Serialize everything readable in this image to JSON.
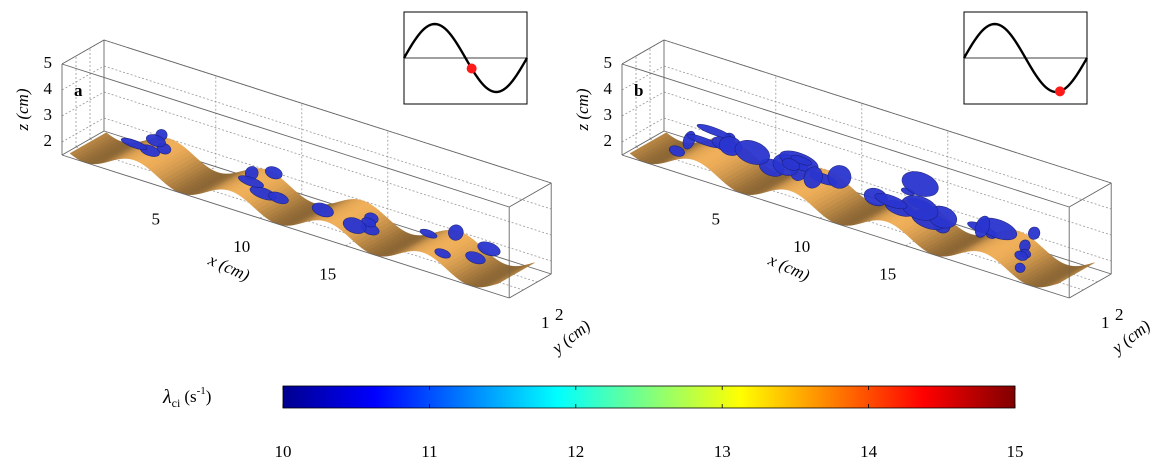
{
  "chart_data": [
    {
      "type": "surface3d",
      "panel_label": "a",
      "xlabel": "x (cm)",
      "ylabel": "y (cm)",
      "zlabel": "z (cm)",
      "xlim": [
        -1.5,
        24.5
      ],
      "ylim": [
        0,
        3
      ],
      "zlim": [
        1.5,
        5
      ],
      "xticks": [
        5,
        10,
        15
      ],
      "yticks": [
        1,
        2
      ],
      "zticks": [
        2,
        3,
        4,
        5
      ],
      "grid": true,
      "surface_color": "#c8924a",
      "vortex_color": "#2a35d0",
      "inset_phase": 0.55
    },
    {
      "type": "surface3d",
      "panel_label": "b",
      "xlabel": "x (cm)",
      "ylabel": "y (cm)",
      "zlabel": "z (cm)",
      "xlim": [
        -1.5,
        24.5
      ],
      "ylim": [
        0,
        3
      ],
      "zlim": [
        1.5,
        5
      ],
      "xticks": [
        5,
        10,
        15
      ],
      "yticks": [
        1,
        2
      ],
      "zticks": [
        2,
        3,
        4,
        5
      ],
      "grid": true,
      "surface_color": "#c8924a",
      "vortex_color": "#2a35d0",
      "inset_phase": 0.78
    }
  ],
  "colorbar": {
    "label": {
      "symbol": "λ",
      "subscript": "ci",
      "unit": "(s",
      "exponent": "-1",
      "close": ")"
    },
    "lim": [
      10,
      15
    ],
    "ticks": [
      10,
      11,
      12,
      13,
      14,
      15
    ],
    "colormap": "jet"
  }
}
